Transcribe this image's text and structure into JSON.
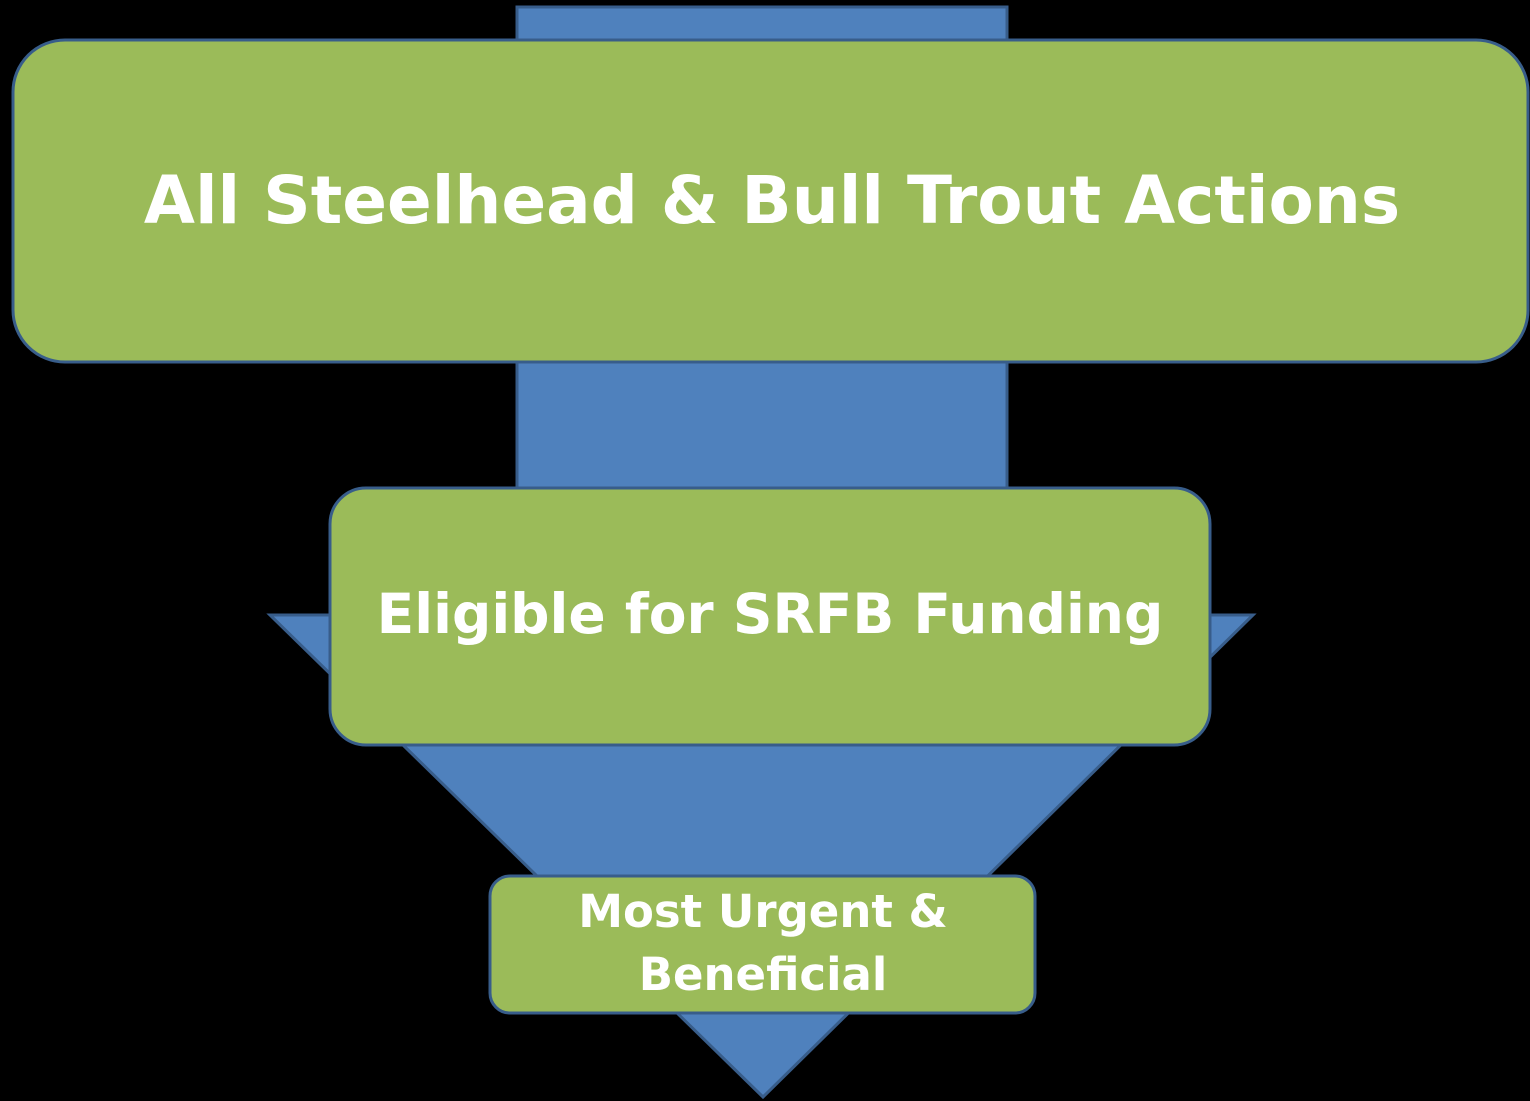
{
  "nodes": [
    {
      "label": "All Steelhead & Bull Trout Actions"
    },
    {
      "label": "Eligible for SRFB Funding"
    },
    {
      "label_lines": [
        "Most Urgent &",
        "Beneficial"
      ]
    }
  ]
}
